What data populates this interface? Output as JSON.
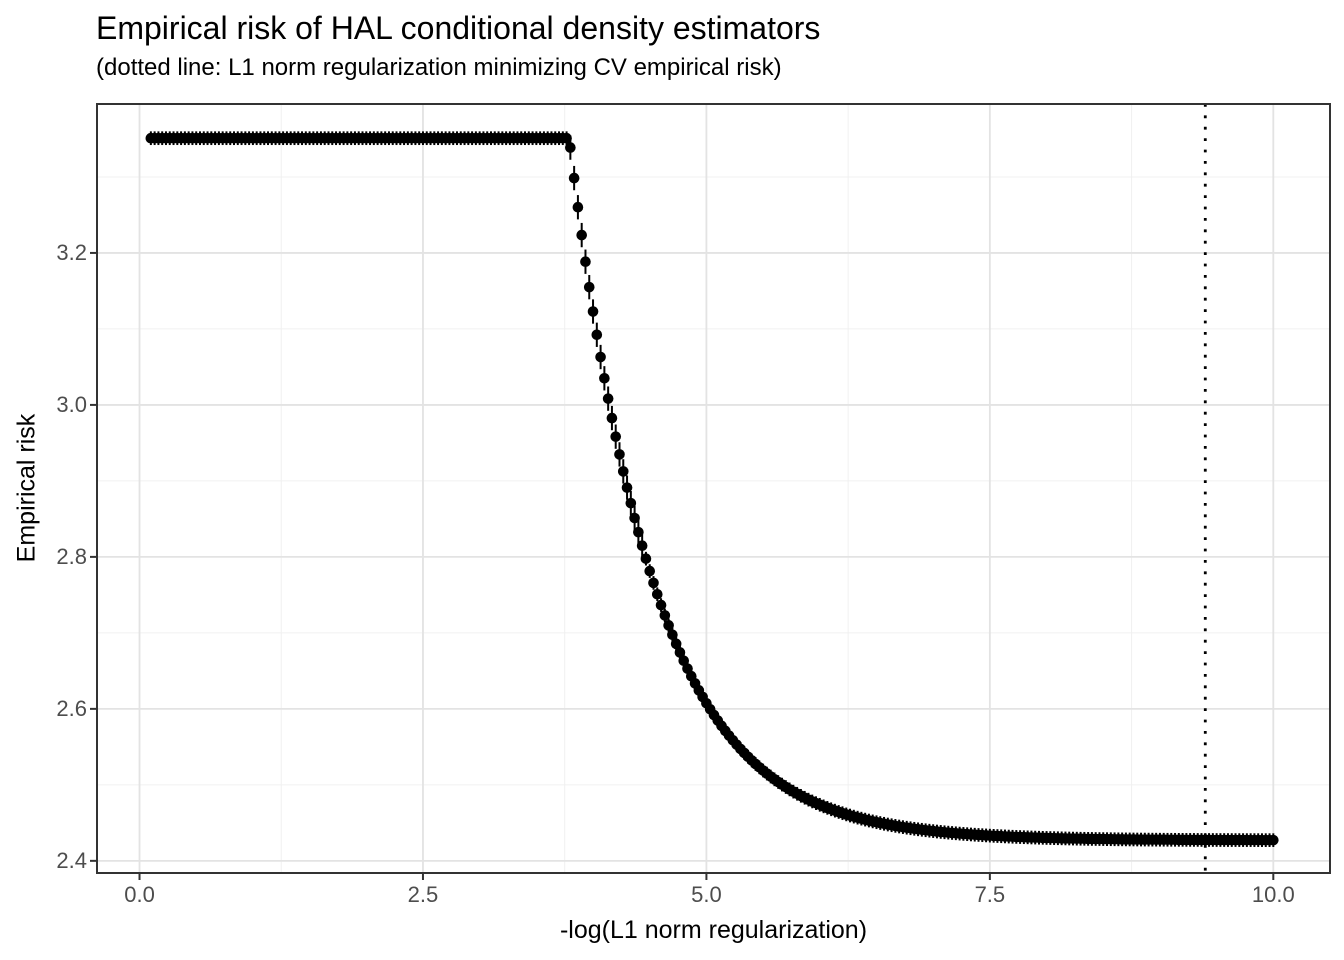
{
  "chart_data": {
    "type": "scatter",
    "title": "Empirical risk of HAL conditional density estimators",
    "subtitle": "(dotted line: L1 norm regularization minimizing CV empirical risk)",
    "xlabel": "-log(L1 norm regularization)",
    "ylabel": "Empirical risk",
    "xlim": [
      -0.375,
      10.5
    ],
    "ylim": [
      2.384,
      3.396
    ],
    "x_ticks": {
      "values": [
        0.0,
        2.5,
        5.0,
        7.5,
        10.0
      ],
      "labels": [
        "0.0",
        "2.5",
        "5.0",
        "7.5",
        "10.0"
      ]
    },
    "y_ticks": {
      "values": [
        2.4,
        2.6,
        2.8,
        3.0,
        3.2
      ],
      "labels": [
        "2.4",
        "2.6",
        "2.8",
        "3.0",
        "3.2"
      ]
    },
    "x_minor": [
      1.25,
      3.75,
      6.25,
      8.75
    ],
    "y_minor": [
      2.5,
      2.7,
      2.9,
      3.1,
      3.3
    ],
    "grid": true,
    "legend": "none",
    "vline_x": 9.4,
    "series_model": {
      "comment": "empirical risk vs -log(lambda); flat then exponential decay",
      "x_start": 0.1,
      "x_end": 10.0,
      "n_points": 298,
      "flat_value": 3.351,
      "breakpoint": 3.79,
      "asymptote": 2.427,
      "decay_rate": 1.35
    },
    "sample_points": [
      [
        0.1,
        3.351
      ],
      [
        0.5,
        3.351
      ],
      [
        1.0,
        3.351
      ],
      [
        1.5,
        3.351
      ],
      [
        2.0,
        3.351
      ],
      [
        2.5,
        3.351
      ],
      [
        3.0,
        3.351
      ],
      [
        3.5,
        3.351
      ],
      [
        3.79,
        3.351
      ],
      [
        3.9,
        3.223
      ],
      [
        4.0,
        3.123
      ],
      [
        4.25,
        2.924
      ],
      [
        4.5,
        2.781
      ],
      [
        4.75,
        2.68
      ],
      [
        5.0,
        2.608
      ],
      [
        5.25,
        2.556
      ],
      [
        5.5,
        2.519
      ],
      [
        5.75,
        2.494
      ],
      [
        6.0,
        2.474
      ],
      [
        6.25,
        2.461
      ],
      [
        6.5,
        2.451
      ],
      [
        7.0,
        2.439
      ],
      [
        7.5,
        2.433
      ],
      [
        8.0,
        2.43
      ],
      [
        8.5,
        2.429
      ],
      [
        9.0,
        2.428
      ],
      [
        9.4,
        2.428
      ],
      [
        9.7,
        2.427
      ],
      [
        10.0,
        2.427
      ]
    ],
    "error_bars": {
      "default_half": 0.009,
      "steep_half": 0.016,
      "steep_range": [
        3.79,
        4.45
      ]
    },
    "style": {
      "point_color": "#000000",
      "point_radius": 5.3,
      "vline_color": "#000000",
      "grid_major_color": "#E3E3E3",
      "grid_minor_color": "#F0F0F0",
      "panel_border_color": "#333333",
      "tick_mark_color": "#333333",
      "tick_label_color": "#4D4D4D",
      "background": "#FFFFFF"
    }
  }
}
